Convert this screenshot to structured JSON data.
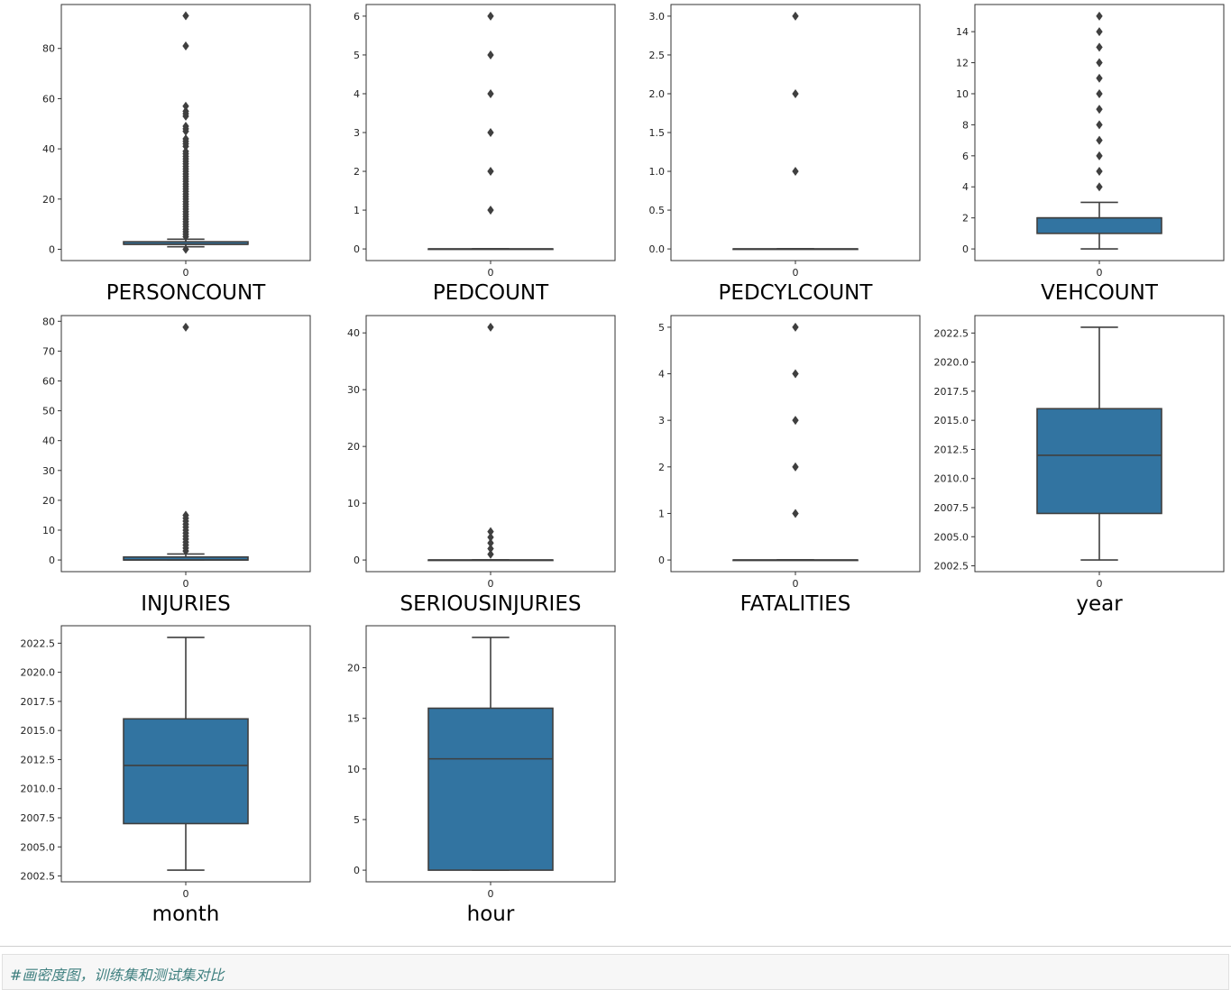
{
  "chart_data": [
    {
      "type": "box",
      "xlabel": "PERSONCOUNT",
      "categories": [
        "0"
      ],
      "ylim": [
        -4.5,
        97.5
      ],
      "yticks": [
        0,
        20,
        40,
        60,
        80
      ],
      "ytick_labels": [
        "0",
        "20",
        "40",
        "60",
        "80"
      ],
      "box": {
        "whisker_low": 1,
        "q1": 2,
        "median": 2,
        "q3": 3,
        "whisker_high": 4
      },
      "outliers": [
        0,
        5,
        6,
        7,
        8,
        9,
        10,
        11,
        12,
        13,
        14,
        15,
        16,
        17,
        18,
        19,
        20,
        21,
        22,
        23,
        24,
        25,
        26,
        27,
        28,
        29,
        30,
        31,
        32,
        33,
        34,
        35,
        36,
        37,
        38,
        39,
        41,
        42,
        43,
        44,
        47,
        48,
        49,
        53,
        54,
        55,
        57,
        81,
        93
      ]
    },
    {
      "type": "box",
      "xlabel": "PEDCOUNT",
      "categories": [
        "0"
      ],
      "ylim": [
        -0.3,
        6.3
      ],
      "yticks": [
        0,
        1,
        2,
        3,
        4,
        5,
        6
      ],
      "ytick_labels": [
        "0",
        "1",
        "2",
        "3",
        "4",
        "5",
        "6"
      ],
      "box": {
        "whisker_low": 0,
        "q1": 0,
        "median": 0,
        "q3": 0,
        "whisker_high": 0
      },
      "outliers": [
        1,
        2,
        3,
        4,
        5,
        6
      ]
    },
    {
      "type": "box",
      "xlabel": "PEDCYLCOUNT",
      "categories": [
        "0"
      ],
      "ylim": [
        -0.15,
        3.15
      ],
      "yticks": [
        0,
        0.5,
        1,
        1.5,
        2,
        2.5,
        3
      ],
      "ytick_labels": [
        "0.0",
        "0.5",
        "1.0",
        "1.5",
        "2.0",
        "2.5",
        "3.0"
      ],
      "box": {
        "whisker_low": 0,
        "q1": 0,
        "median": 0,
        "q3": 0,
        "whisker_high": 0
      },
      "outliers": [
        1,
        2,
        3
      ]
    },
    {
      "type": "box",
      "xlabel": "VEHCOUNT",
      "categories": [
        "0"
      ],
      "ylim": [
        -0.75,
        15.75
      ],
      "yticks": [
        0,
        2,
        4,
        6,
        8,
        10,
        12,
        14
      ],
      "ytick_labels": [
        "0",
        "2",
        "4",
        "6",
        "8",
        "10",
        "12",
        "14"
      ],
      "box": {
        "whisker_low": 0,
        "q1": 1,
        "median": 2,
        "q3": 2,
        "whisker_high": 3
      },
      "outliers": [
        4,
        5,
        6,
        7,
        8,
        9,
        10,
        11,
        12,
        13,
        14,
        15
      ]
    },
    {
      "type": "box",
      "xlabel": "INJURIES",
      "categories": [
        "0"
      ],
      "ylim": [
        -3.9,
        81.9
      ],
      "yticks": [
        0,
        10,
        20,
        30,
        40,
        50,
        60,
        70,
        80
      ],
      "ytick_labels": [
        "0",
        "10",
        "20",
        "30",
        "40",
        "50",
        "60",
        "70",
        "80"
      ],
      "box": {
        "whisker_low": 0,
        "q1": 0,
        "median": 0,
        "q3": 1,
        "whisker_high": 2
      },
      "outliers": [
        3,
        4,
        5,
        6,
        7,
        8,
        9,
        10,
        11,
        12,
        13,
        14,
        15,
        78
      ]
    },
    {
      "type": "box",
      "xlabel": "SERIOUSINJURIES",
      "categories": [
        "0"
      ],
      "ylim": [
        -2.05,
        43.05
      ],
      "yticks": [
        0,
        10,
        20,
        30,
        40
      ],
      "ytick_labels": [
        "0",
        "10",
        "20",
        "30",
        "40"
      ],
      "box": {
        "whisker_low": 0,
        "q1": 0,
        "median": 0,
        "q3": 0,
        "whisker_high": 0
      },
      "outliers": [
        1,
        2,
        3,
        4,
        5,
        41
      ]
    },
    {
      "type": "box",
      "xlabel": "FATALITIES",
      "categories": [
        "0"
      ],
      "ylim": [
        -0.25,
        5.25
      ],
      "yticks": [
        0,
        1,
        2,
        3,
        4,
        5
      ],
      "ytick_labels": [
        "0",
        "1",
        "2",
        "3",
        "4",
        "5"
      ],
      "box": {
        "whisker_low": 0,
        "q1": 0,
        "median": 0,
        "q3": 0,
        "whisker_high": 0
      },
      "outliers": [
        1,
        2,
        3,
        4,
        5
      ]
    },
    {
      "type": "box",
      "xlabel": "year",
      "categories": [
        "0"
      ],
      "ylim": [
        2002,
        2024
      ],
      "yticks": [
        2002.5,
        2005,
        2007.5,
        2010,
        2012.5,
        2015,
        2017.5,
        2020,
        2022.5
      ],
      "ytick_labels": [
        "2002.5",
        "2005.0",
        "2007.5",
        "2010.0",
        "2012.5",
        "2015.0",
        "2017.5",
        "2020.0",
        "2022.5"
      ],
      "box": {
        "whisker_low": 2003,
        "q1": 2007,
        "median": 2012,
        "q3": 2016,
        "whisker_high": 2023
      },
      "outliers": []
    },
    {
      "type": "box",
      "xlabel": "month",
      "categories": [
        "0"
      ],
      "ylim": [
        2002,
        2024
      ],
      "yticks": [
        2002.5,
        2005,
        2007.5,
        2010,
        2012.5,
        2015,
        2017.5,
        2020,
        2022.5
      ],
      "ytick_labels": [
        "2002.5",
        "2005.0",
        "2007.5",
        "2010.0",
        "2012.5",
        "2015.0",
        "2017.5",
        "2020.0",
        "2022.5"
      ],
      "box": {
        "whisker_low": 2003,
        "q1": 2007,
        "median": 2012,
        "q3": 2016,
        "whisker_high": 2023
      },
      "outliers": []
    },
    {
      "type": "box",
      "xlabel": "hour",
      "categories": [
        "0"
      ],
      "ylim": [
        -1.15,
        24.15
      ],
      "yticks": [
        0,
        5,
        10,
        15,
        20
      ],
      "ytick_labels": [
        "0",
        "5",
        "10",
        "15",
        "20"
      ],
      "box": {
        "whisker_low": 0,
        "q1": 0,
        "median": 11,
        "q3": 16,
        "whisker_high": 23
      },
      "outliers": []
    }
  ],
  "colors": {
    "box_fill": "#3274a1",
    "line": "#3f3f3f",
    "axes": "#333333"
  },
  "code_cell": {
    "comment": "#画密度图，训练集和测试集对比"
  }
}
